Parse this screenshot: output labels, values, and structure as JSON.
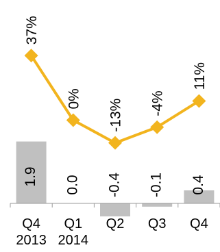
{
  "chart_data": {
    "type": "bar+line",
    "categories": [
      "Q4\n2013",
      "Q1\n2014",
      "Q2",
      "Q3",
      "Q4"
    ],
    "tick_lines": [
      [
        "Q4",
        "2013"
      ],
      [
        "Q1",
        "2014"
      ],
      [
        "Q2"
      ],
      [
        "Q3"
      ],
      [
        "Q4"
      ]
    ],
    "series": [
      {
        "type": "bar",
        "values": [
          1.9,
          0.0,
          -0.4,
          -0.1,
          0.4
        ],
        "labels": [
          "1.9",
          "0.0",
          "-0.4",
          "-0.1",
          "0.4"
        ]
      },
      {
        "type": "line",
        "values": [
          37,
          0,
          -13,
          -4,
          11
        ],
        "labels": [
          "37%",
          "0%",
          "-13%",
          "-4%",
          "11%"
        ]
      }
    ],
    "colors": {
      "bars": "#c0c0c0",
      "line": "#f2b41e",
      "axis": "#9a9a9a"
    },
    "label_orientation": "vertical",
    "grid": false,
    "legend": "none"
  }
}
